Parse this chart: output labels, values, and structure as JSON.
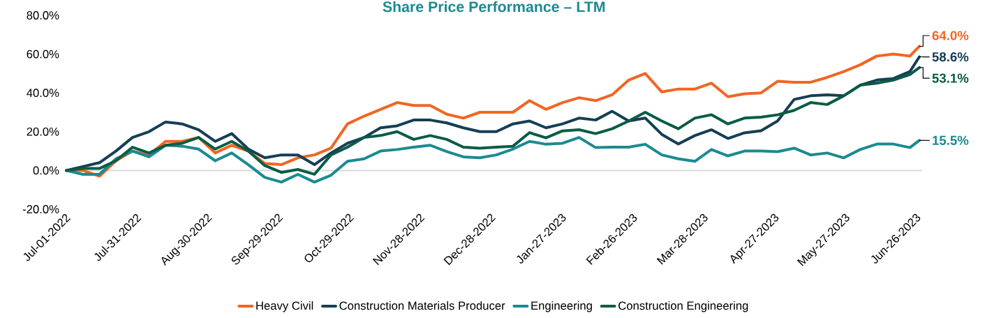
{
  "chart_data": {
    "type": "line",
    "title": "Share Price Performance – LTM",
    "x": [
      "2022-07-01",
      "2022-07-08",
      "2022-07-15",
      "2022-07-22",
      "2022-07-29",
      "2022-08-05",
      "2022-08-12",
      "2022-08-19",
      "2022-08-26",
      "2022-09-02",
      "2022-09-09",
      "2022-09-16",
      "2022-09-23",
      "2022-09-30",
      "2022-10-07",
      "2022-10-14",
      "2022-10-21",
      "2022-10-28",
      "2022-11-04",
      "2022-11-11",
      "2022-11-18",
      "2022-11-25",
      "2022-12-02",
      "2022-12-09",
      "2022-12-16",
      "2022-12-23",
      "2022-12-30",
      "2023-01-06",
      "2023-01-13",
      "2023-01-20",
      "2023-01-27",
      "2023-02-03",
      "2023-02-10",
      "2023-02-17",
      "2023-02-24",
      "2023-03-03",
      "2023-03-10",
      "2023-03-17",
      "2023-03-24",
      "2023-03-31",
      "2023-04-07",
      "2023-04-14",
      "2023-04-21",
      "2023-04-28",
      "2023-05-05",
      "2023-05-12",
      "2023-05-19",
      "2023-05-26",
      "2023-06-02",
      "2023-06-09",
      "2023-06-16",
      "2023-06-23",
      "2023-06-27"
    ],
    "series": [
      {
        "name": "Heavy Civil",
        "color": "#f26522",
        "values": [
          0,
          0,
          -3,
          5,
          10,
          8,
          15,
          15,
          17,
          9,
          13,
          10,
          3.6,
          3,
          6.5,
          8,
          11.5,
          24,
          28,
          31.5,
          35,
          33.5,
          33.5,
          29,
          27,
          30,
          30,
          30,
          36,
          31.5,
          35,
          37.5,
          36,
          39,
          46.6,
          50,
          40.5,
          42,
          42,
          45,
          38,
          39.5,
          40,
          46,
          45.5,
          45.5,
          48,
          51,
          54.5,
          59,
          60,
          59,
          64.0
        ]
      },
      {
        "name": "Construction Materials Producer",
        "color": "#163e56",
        "values": [
          0,
          2,
          4,
          10,
          17,
          20,
          25,
          24,
          21,
          15,
          19,
          11,
          6.5,
          8,
          8,
          3,
          9,
          14,
          17,
          22,
          23,
          26,
          26,
          24.5,
          22,
          20,
          20,
          24,
          25.5,
          22,
          24,
          27,
          26,
          30.5,
          25.5,
          27,
          18.6,
          13.6,
          18,
          21,
          16.5,
          19.4,
          20.5,
          25.5,
          36.6,
          38.5,
          39,
          38.5,
          44,
          46.6,
          47.4,
          51,
          58.6
        ]
      },
      {
        "name": "Engineering",
        "color": "#1b8a92",
        "values": [
          0,
          -2,
          -2,
          6,
          10,
          7,
          13,
          12.5,
          11,
          5,
          9,
          3,
          -3.6,
          -6,
          -2,
          -6,
          -2.5,
          4.7,
          6,
          10,
          10.8,
          12,
          13,
          9.7,
          7,
          6.5,
          8,
          11,
          15,
          13.5,
          14,
          17,
          11.8,
          12,
          12,
          13.5,
          8,
          6,
          4.7,
          10.8,
          7.5,
          10,
          10,
          9.7,
          11.5,
          8,
          9,
          6.5,
          10.8,
          13.6,
          13.6,
          11.8,
          15.5
        ]
      },
      {
        "name": "Construction Engineering",
        "color": "#0a5c45",
        "values": [
          0,
          1,
          1,
          5,
          12,
          9,
          13,
          14,
          17,
          11,
          15,
          10,
          2.5,
          -1,
          0.5,
          -2,
          8,
          12,
          17,
          18,
          20,
          16,
          18,
          16,
          12,
          11.5,
          12,
          12.5,
          19.5,
          16.8,
          20.4,
          21,
          19,
          21.5,
          25.5,
          30,
          25.5,
          21.5,
          27,
          28.7,
          24,
          27,
          27.5,
          28.7,
          31,
          35,
          34,
          38.5,
          44,
          45,
          46.6,
          49.5,
          53.1
        ]
      }
    ],
    "annotations": [
      {
        "text": "64.0%",
        "x": "2023-06-27",
        "y": 64.0
      },
      {
        "text": "58.6%",
        "x": "2023-06-27",
        "y": 58.6
      },
      {
        "text": "15.5%",
        "x": "2023-06-27",
        "y": 15.5
      },
      {
        "text": "53.1%",
        "x": "2023-06-27",
        "y": 53.1
      }
    ],
    "xlim": [
      "2022-07-01",
      "2023-06-28"
    ],
    "xticks": [
      {
        "value": "2022-07-01",
        "label": "Jul-01-2022"
      },
      {
        "value": "2022-07-31",
        "label": "Jul-31-2022"
      },
      {
        "value": "2022-08-30",
        "label": "Aug-30-2022"
      },
      {
        "value": "2022-09-29",
        "label": "Sep-29-2022"
      },
      {
        "value": "2022-10-29",
        "label": "Oct-29-2022"
      },
      {
        "value": "2022-11-28",
        "label": "Nov-28-2022"
      },
      {
        "value": "2022-12-28",
        "label": "Dec-28-2022"
      },
      {
        "value": "2023-01-27",
        "label": "Jan-27-2023"
      },
      {
        "value": "2023-02-26",
        "label": "Feb-26-2023"
      },
      {
        "value": "2023-03-28",
        "label": "Mar-28-2023"
      },
      {
        "value": "2023-04-27",
        "label": "Apr-27-2023"
      },
      {
        "value": "2023-05-27",
        "label": "May-27-2023"
      },
      {
        "value": "2023-06-26",
        "label": "Jun-26-2023"
      }
    ],
    "ylim": [
      -20,
      80
    ],
    "yticks": [
      {
        "value": -20,
        "label": "-20.0%"
      },
      {
        "value": 0,
        "label": "0.0%"
      },
      {
        "value": 20,
        "label": "20.0%"
      },
      {
        "value": 40,
        "label": "40.0%"
      },
      {
        "value": 60,
        "label": "60.0%"
      },
      {
        "value": 80,
        "label": "80.0%"
      }
    ],
    "ref_lines": [
      {
        "axis": "y",
        "value": 0,
        "color": "#d9d9d9"
      }
    ],
    "legend": "bottom",
    "marker": "none",
    "line_style": "solid"
  }
}
